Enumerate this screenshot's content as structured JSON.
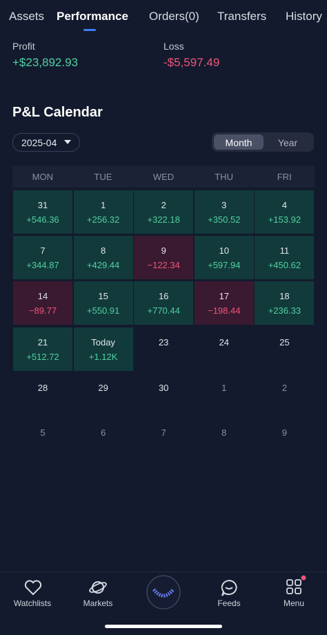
{
  "tabs": [
    "Assets",
    "Performance",
    "Orders(0)",
    "Transfers",
    "History"
  ],
  "summary": {
    "profit_label": "Profit",
    "profit": "+$23,892.93",
    "loss_label": "Loss",
    "loss": "-$5,597.49"
  },
  "calendar": {
    "title": "P&L Calendar",
    "period": "2025-04",
    "toggle": [
      "Month",
      "Year"
    ],
    "weekdays": [
      "MON",
      "TUE",
      "WED",
      "THU",
      "FRI"
    ],
    "cells": [
      {
        "day": "31",
        "pnl": "+546.36"
      },
      {
        "day": "1",
        "pnl": "+256.32"
      },
      {
        "day": "2",
        "pnl": "+322.18"
      },
      {
        "day": "3",
        "pnl": "+350.52"
      },
      {
        "day": "4",
        "pnl": "+153.92"
      },
      {
        "day": "7",
        "pnl": "+344.87"
      },
      {
        "day": "8",
        "pnl": "+429.44"
      },
      {
        "day": "9",
        "pnl": "−122.34"
      },
      {
        "day": "10",
        "pnl": "+597.94"
      },
      {
        "day": "11",
        "pnl": "+450.62"
      },
      {
        "day": "14",
        "pnl": "−89.77"
      },
      {
        "day": "15",
        "pnl": "+550.91"
      },
      {
        "day": "16",
        "pnl": "+770.44"
      },
      {
        "day": "17",
        "pnl": "−198.44"
      },
      {
        "day": "18",
        "pnl": "+236.33"
      },
      {
        "day": "21",
        "pnl": "+512.72"
      },
      {
        "day": "Today",
        "pnl": "+1.12K"
      },
      {
        "day": "23"
      },
      {
        "day": "24"
      },
      {
        "day": "25"
      },
      {
        "day": "28"
      },
      {
        "day": "29"
      },
      {
        "day": "30"
      },
      {
        "day": "1",
        "color": "#8a90a6"
      },
      {
        "day": "2",
        "color": "#8a90a6"
      },
      {
        "day": "5",
        "color": "#8a90a6"
      },
      {
        "day": "6",
        "color": "#8a90a6"
      },
      {
        "day": "7",
        "color": "#8a90a6"
      },
      {
        "day": "8",
        "color": "#8a90a6"
      },
      {
        "day": "9",
        "color": "#8a90a6"
      }
    ]
  },
  "nav": [
    "Watchlists",
    "Markets",
    "Feeds",
    "Menu"
  ]
}
